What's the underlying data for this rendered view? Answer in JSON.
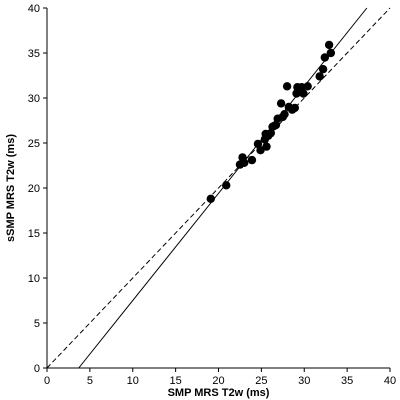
{
  "chart_data": {
    "type": "scatter",
    "title": "",
    "xlabel": "SMP MRS T2w (ms)",
    "ylabel": "sSMP MRS T2w (ms)",
    "xlim": [
      0,
      40
    ],
    "ylim": [
      0,
      40
    ],
    "xticks": [
      0,
      5,
      10,
      15,
      20,
      25,
      30,
      35,
      40
    ],
    "yticks": [
      0,
      5,
      10,
      15,
      20,
      25,
      30,
      35,
      40
    ],
    "grid": false,
    "legend": "none",
    "points": [
      {
        "x": 19.1,
        "y": 18.8
      },
      {
        "x": 20.9,
        "y": 20.3
      },
      {
        "x": 22.5,
        "y": 22.6
      },
      {
        "x": 22.8,
        "y": 23.4
      },
      {
        "x": 23.0,
        "y": 22.8
      },
      {
        "x": 23.9,
        "y": 23.1
      },
      {
        "x": 24.6,
        "y": 24.9
      },
      {
        "x": 24.9,
        "y": 24.2
      },
      {
        "x": 25.4,
        "y": 25.4
      },
      {
        "x": 25.5,
        "y": 26.0
      },
      {
        "x": 25.6,
        "y": 24.6
      },
      {
        "x": 25.8,
        "y": 25.8
      },
      {
        "x": 26.1,
        "y": 26.1
      },
      {
        "x": 26.3,
        "y": 26.8
      },
      {
        "x": 26.5,
        "y": 26.9
      },
      {
        "x": 26.7,
        "y": 27.0
      },
      {
        "x": 26.9,
        "y": 27.7
      },
      {
        "x": 27.3,
        "y": 29.4
      },
      {
        "x": 27.5,
        "y": 27.9
      },
      {
        "x": 27.7,
        "y": 28.2
      },
      {
        "x": 28.0,
        "y": 31.3
      },
      {
        "x": 28.2,
        "y": 29.0
      },
      {
        "x": 28.6,
        "y": 28.7
      },
      {
        "x": 28.9,
        "y": 28.9
      },
      {
        "x": 29.1,
        "y": 30.5
      },
      {
        "x": 29.2,
        "y": 31.2
      },
      {
        "x": 29.7,
        "y": 31.2
      },
      {
        "x": 29.9,
        "y": 30.5
      },
      {
        "x": 30.4,
        "y": 31.3
      },
      {
        "x": 31.8,
        "y": 32.4
      },
      {
        "x": 32.2,
        "y": 33.2
      },
      {
        "x": 32.4,
        "y": 34.5
      },
      {
        "x": 32.9,
        "y": 35.9
      },
      {
        "x": 33.1,
        "y": 35.0
      }
    ],
    "lines": [
      {
        "kind": "regression",
        "style": "solid",
        "x": [
          3.7,
          37.3
        ],
        "y": [
          0,
          40
        ]
      },
      {
        "kind": "identity",
        "style": "dashed",
        "x": [
          0,
          40
        ],
        "y": [
          0,
          40
        ]
      }
    ]
  }
}
